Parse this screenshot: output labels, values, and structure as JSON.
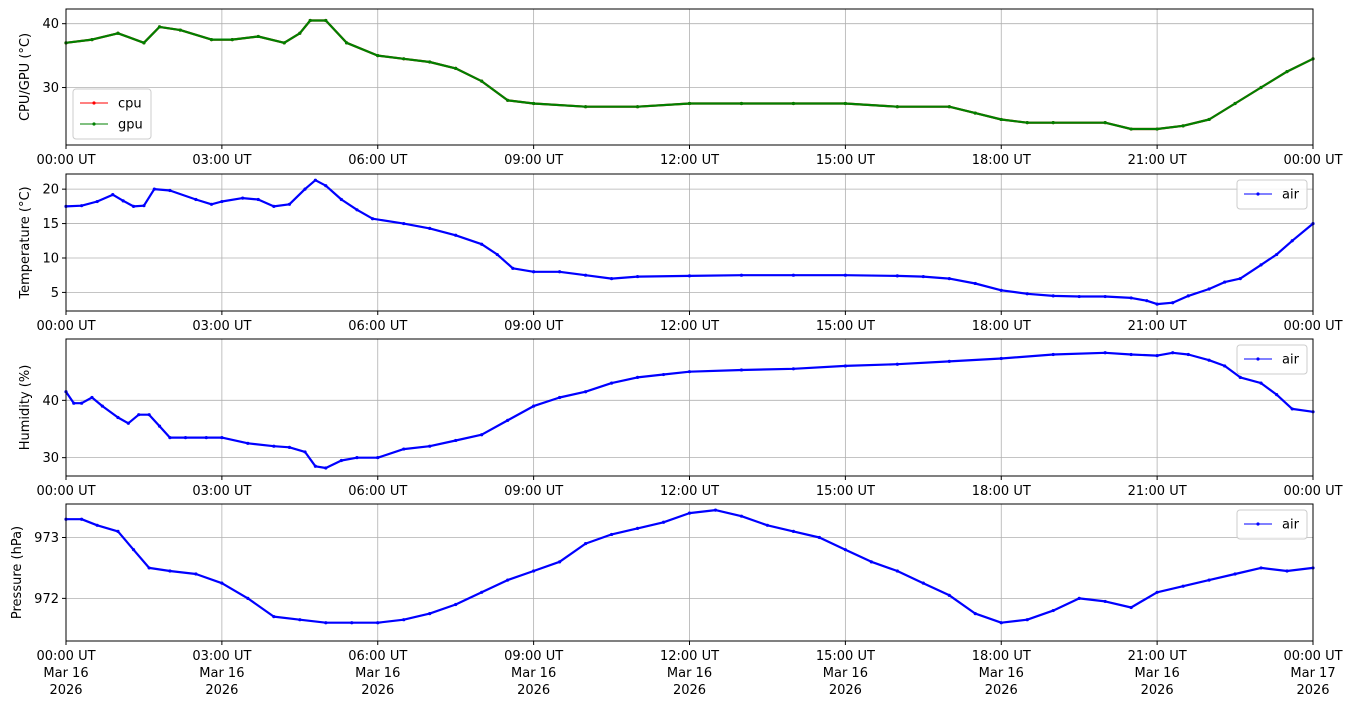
{
  "x_tick_labels": [
    "00:00 UT",
    "03:00 UT",
    "06:00 UT",
    "09:00 UT",
    "12:00 UT",
    "15:00 UT",
    "18:00 UT",
    "21:00 UT",
    "00:00 UT"
  ],
  "date_labels": [
    [
      "Mar 16",
      "2026"
    ],
    [
      "Mar 16",
      "2026"
    ],
    [
      "Mar 16",
      "2026"
    ],
    [
      "Mar 16",
      "2026"
    ],
    [
      "Mar 16",
      "2026"
    ],
    [
      "Mar 16",
      "2026"
    ],
    [
      "Mar 16",
      "2026"
    ],
    [
      "Mar 16",
      "2026"
    ],
    [
      "Mar 17",
      "2026"
    ]
  ],
  "chart_data": [
    {
      "type": "line",
      "ylabel": "CPU/GPU (°C)",
      "yticks": [
        30,
        40
      ],
      "ylim": [
        21,
        42.3
      ],
      "x_unit": "hours UT from 2026-03-16 00:00",
      "xlim": [
        0,
        24
      ],
      "grid": true,
      "legend": "lower-left",
      "series": [
        {
          "name": "cpu",
          "color": "#ff0000",
          "x": [
            0,
            0.5,
            1,
            1.5,
            1.8,
            2.2,
            2.8,
            3.2,
            3.7,
            4.2,
            4.5,
            4.7,
            5,
            5.4,
            6,
            6.5,
            7,
            7.5,
            8,
            8.5,
            9,
            10,
            11,
            12,
            13,
            14,
            15,
            16,
            17,
            17.5,
            18,
            18.5,
            19,
            20,
            20.5,
            21,
            21.5,
            22,
            22.5,
            23,
            23.5,
            24
          ],
          "y": [
            37,
            37.5,
            38.5,
            37,
            39.5,
            39,
            37.5,
            37.5,
            38,
            37,
            38.5,
            40.5,
            40.5,
            37,
            35,
            34.5,
            34,
            33,
            31,
            28,
            27.5,
            27,
            27,
            27.5,
            27.5,
            27.5,
            27.5,
            27,
            27,
            26,
            25,
            24.5,
            24.5,
            24.5,
            23.5,
            23.5,
            24,
            25,
            27.5,
            30,
            32.5,
            34.5
          ]
        },
        {
          "name": "gpu",
          "color": "#008000",
          "x": [
            0,
            0.5,
            1,
            1.5,
            1.8,
            2.2,
            2.8,
            3.2,
            3.7,
            4.2,
            4.5,
            4.7,
            5,
            5.4,
            6,
            6.5,
            7,
            7.5,
            8,
            8.5,
            9,
            10,
            11,
            12,
            13,
            14,
            15,
            16,
            17,
            17.5,
            18,
            18.5,
            19,
            20,
            20.5,
            21,
            21.5,
            22,
            22.5,
            23,
            23.5,
            24
          ],
          "y": [
            37,
            37.5,
            38.5,
            37,
            39.5,
            39,
            37.5,
            37.5,
            38,
            37,
            38.5,
            40.5,
            40.5,
            37,
            35,
            34.5,
            34,
            33,
            31,
            28,
            27.5,
            27,
            27,
            27.5,
            27.5,
            27.5,
            27.5,
            27,
            27,
            26,
            25,
            24.5,
            24.5,
            24.5,
            23.5,
            23.5,
            24,
            25,
            27.5,
            30,
            32.5,
            34.5
          ]
        }
      ]
    },
    {
      "type": "line",
      "ylabel": "Temperature (°C)",
      "yticks": [
        5,
        10,
        15,
        20
      ],
      "ylim": [
        2.3,
        22.2
      ],
      "x_unit": "hours UT from 2026-03-16 00:00",
      "xlim": [
        0,
        24
      ],
      "grid": true,
      "legend": "upper-right",
      "series": [
        {
          "name": "air",
          "color": "#0000ff",
          "x": [
            0,
            0.3,
            0.6,
            0.9,
            1.1,
            1.3,
            1.5,
            1.7,
            2.0,
            2.5,
            2.8,
            3.0,
            3.4,
            3.7,
            4.0,
            4.3,
            4.6,
            4.8,
            5.0,
            5.3,
            5.6,
            5.9,
            6.5,
            7.0,
            7.5,
            8.0,
            8.3,
            8.6,
            9.0,
            9.5,
            10,
            10.5,
            11,
            12,
            13,
            14,
            15,
            16,
            16.5,
            17,
            17.5,
            18,
            18.5,
            19,
            19.5,
            20,
            20.5,
            20.8,
            21,
            21.3,
            21.6,
            22,
            22.3,
            22.6,
            23,
            23.3,
            23.6,
            24
          ],
          "y": [
            17.5,
            17.6,
            18.2,
            19.2,
            18.3,
            17.5,
            17.6,
            20.0,
            19.8,
            18.5,
            17.8,
            18.2,
            18.7,
            18.5,
            17.5,
            17.8,
            20.0,
            21.3,
            20.5,
            18.5,
            17.0,
            15.7,
            15.0,
            14.3,
            13.3,
            12.0,
            10.5,
            8.5,
            8.0,
            8.0,
            7.5,
            7.0,
            7.3,
            7.4,
            7.5,
            7.5,
            7.5,
            7.4,
            7.3,
            7.0,
            6.3,
            5.3,
            4.8,
            4.5,
            4.4,
            4.4,
            4.2,
            3.8,
            3.3,
            3.5,
            4.5,
            5.5,
            6.5,
            7.0,
            9.0,
            10.5,
            12.5,
            15.0
          ]
        }
      ]
    },
    {
      "type": "line",
      "ylabel": "Humidity (%)",
      "yticks": [
        30,
        40
      ],
      "ylim": [
        26.8,
        50.7
      ],
      "x_unit": "hours UT from 2026-03-16 00:00",
      "xlim": [
        0,
        24
      ],
      "grid": true,
      "legend": "upper-right",
      "series": [
        {
          "name": "air",
          "color": "#0000ff",
          "x": [
            0,
            0.15,
            0.3,
            0.5,
            0.7,
            1.0,
            1.2,
            1.4,
            1.6,
            1.8,
            2.0,
            2.3,
            2.7,
            3.0,
            3.5,
            4.0,
            4.3,
            4.6,
            4.8,
            5.0,
            5.3,
            5.6,
            6.0,
            6.5,
            7.0,
            7.5,
            8.0,
            8.5,
            9.0,
            9.5,
            10,
            10.5,
            11,
            11.5,
            12,
            13,
            14,
            15,
            16,
            17,
            18,
            19,
            20,
            20.5,
            21,
            21.3,
            21.6,
            22,
            22.3,
            22.6,
            23,
            23.3,
            23.6,
            24
          ],
          "y": [
            41.5,
            39.5,
            39.5,
            40.5,
            39.0,
            37.0,
            36.0,
            37.5,
            37.5,
            35.5,
            33.5,
            33.5,
            33.5,
            33.5,
            32.5,
            32.0,
            31.8,
            31.0,
            28.5,
            28.2,
            29.5,
            30.0,
            30.0,
            31.5,
            32.0,
            33.0,
            34.0,
            36.5,
            39.0,
            40.5,
            41.5,
            43.0,
            44.0,
            44.5,
            45.0,
            45.3,
            45.5,
            46.0,
            46.3,
            46.8,
            47.3,
            48.0,
            48.3,
            48.0,
            47.8,
            48.3,
            48.0,
            47.0,
            46.0,
            44.0,
            43.0,
            41.0,
            38.5,
            38.0
          ]
        }
      ]
    },
    {
      "type": "line",
      "ylabel": "Pressure (hPa)",
      "yticks": [
        972,
        973
      ],
      "ylim": [
        971.3,
        973.55
      ],
      "x_unit": "hours UT from 2026-03-16 00:00",
      "xlim": [
        0,
        24
      ],
      "grid": true,
      "legend": "upper-right",
      "series": [
        {
          "name": "air",
          "color": "#0000ff",
          "x": [
            0,
            0.3,
            0.6,
            1.0,
            1.3,
            1.6,
            2.0,
            2.5,
            3.0,
            3.5,
            4.0,
            4.5,
            5.0,
            5.5,
            6.0,
            6.5,
            7.0,
            7.5,
            8.0,
            8.5,
            9.0,
            9.5,
            10,
            10.5,
            11,
            11.5,
            12,
            12.5,
            13,
            13.5,
            14,
            14.5,
            15,
            15.5,
            16,
            16.5,
            17,
            17.5,
            18,
            18.5,
            19,
            19.5,
            20,
            20.5,
            21,
            21.5,
            22,
            22.5,
            23,
            23.5,
            24
          ],
          "y": [
            973.3,
            973.3,
            973.2,
            973.1,
            972.8,
            972.5,
            972.45,
            972.4,
            972.25,
            972.0,
            971.7,
            971.65,
            971.6,
            971.6,
            971.6,
            971.65,
            971.75,
            971.9,
            972.1,
            972.3,
            972.45,
            972.6,
            972.9,
            973.05,
            973.15,
            973.25,
            973.4,
            973.45,
            973.35,
            973.2,
            973.1,
            973.0,
            972.8,
            972.6,
            972.45,
            972.25,
            972.05,
            971.75,
            971.6,
            971.65,
            971.8,
            972.0,
            971.95,
            971.85,
            972.1,
            972.2,
            972.3,
            972.4,
            972.5,
            972.45,
            972.5
          ]
        }
      ]
    }
  ]
}
